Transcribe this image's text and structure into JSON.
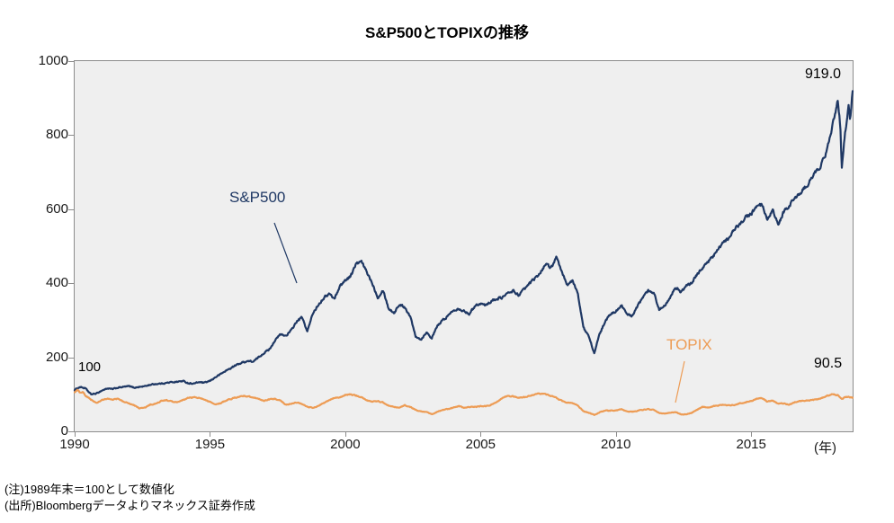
{
  "title": "S&P500とTOPIXの推移",
  "annotations": {
    "start_value": "100",
    "sp500_label": "S&P500",
    "topix_label": "TOPIX",
    "sp500_end": "919.0",
    "topix_end": "90.5",
    "x_unit": "(年)"
  },
  "footnotes": [
    "(注)1989年末＝100として数値化",
    "(出所)Bloombergデータよりマネックス証券作成"
  ],
  "colors": {
    "sp500": "#1f3864",
    "topix": "#ed9c55",
    "plot_bg": "#efefef",
    "axis": "#8c8c8c"
  },
  "chart_data": {
    "type": "line",
    "title": "S&P500とTOPIXの推移",
    "xlabel": "(年)",
    "ylabel": "",
    "x_range": [
      1990,
      2018.75
    ],
    "x_ticks": [
      1990,
      1995,
      2000,
      2005,
      2010,
      2015
    ],
    "ylim": [
      0,
      1000
    ],
    "y_ticks": [
      0,
      200,
      400,
      600,
      800,
      1000
    ],
    "note": "1989年末＝100として数値化",
    "series": [
      {
        "name": "S&P500",
        "color": "#1f3864",
        "end_value": 919.0,
        "points": [
          [
            1990.0,
            112
          ],
          [
            1990.2,
            120
          ],
          [
            1990.4,
            116
          ],
          [
            1990.6,
            100
          ],
          [
            1990.8,
            102
          ],
          [
            1991.0,
            110
          ],
          [
            1991.2,
            116
          ],
          [
            1991.4,
            114
          ],
          [
            1991.6,
            118
          ],
          [
            1991.8,
            120
          ],
          [
            1992.0,
            122
          ],
          [
            1992.2,
            118
          ],
          [
            1992.4,
            120
          ],
          [
            1992.6,
            122
          ],
          [
            1992.8,
            126
          ],
          [
            1993.0,
            128
          ],
          [
            1993.2,
            129
          ],
          [
            1993.4,
            131
          ],
          [
            1993.6,
            133
          ],
          [
            1993.8,
            134
          ],
          [
            1994.0,
            136
          ],
          [
            1994.2,
            130
          ],
          [
            1994.4,
            129
          ],
          [
            1994.6,
            133
          ],
          [
            1994.8,
            131
          ],
          [
            1995.0,
            136
          ],
          [
            1995.2,
            146
          ],
          [
            1995.4,
            155
          ],
          [
            1995.6,
            164
          ],
          [
            1995.8,
            172
          ],
          [
            1996.0,
            180
          ],
          [
            1996.2,
            186
          ],
          [
            1996.4,
            190
          ],
          [
            1996.6,
            188
          ],
          [
            1996.8,
            200
          ],
          [
            1997.0,
            212
          ],
          [
            1997.2,
            222
          ],
          [
            1997.4,
            245
          ],
          [
            1997.6,
            262
          ],
          [
            1997.8,
            258
          ],
          [
            1998.0,
            272
          ],
          [
            1998.2,
            296
          ],
          [
            1998.4,
            308
          ],
          [
            1998.6,
            270
          ],
          [
            1998.8,
            318
          ],
          [
            1999.0,
            342
          ],
          [
            1999.2,
            360
          ],
          [
            1999.4,
            372
          ],
          [
            1999.6,
            358
          ],
          [
            1999.8,
            392
          ],
          [
            2000.0,
            408
          ],
          [
            2000.2,
            420
          ],
          [
            2000.4,
            452
          ],
          [
            2000.6,
            458
          ],
          [
            2000.8,
            430
          ],
          [
            2001.0,
            400
          ],
          [
            2001.2,
            362
          ],
          [
            2001.4,
            382
          ],
          [
            2001.6,
            332
          ],
          [
            2001.8,
            320
          ],
          [
            2002.0,
            342
          ],
          [
            2002.2,
            336
          ],
          [
            2002.4,
            310
          ],
          [
            2002.6,
            258
          ],
          [
            2002.8,
            248
          ],
          [
            2003.0,
            268
          ],
          [
            2003.2,
            252
          ],
          [
            2003.4,
            284
          ],
          [
            2003.6,
            300
          ],
          [
            2003.8,
            312
          ],
          [
            2004.0,
            328
          ],
          [
            2004.2,
            332
          ],
          [
            2004.4,
            324
          ],
          [
            2004.6,
            318
          ],
          [
            2004.8,
            340
          ],
          [
            2005.0,
            346
          ],
          [
            2005.2,
            340
          ],
          [
            2005.4,
            352
          ],
          [
            2005.6,
            358
          ],
          [
            2005.8,
            362
          ],
          [
            2006.0,
            372
          ],
          [
            2006.2,
            380
          ],
          [
            2006.4,
            368
          ],
          [
            2006.6,
            382
          ],
          [
            2006.8,
            398
          ],
          [
            2007.0,
            412
          ],
          [
            2007.2,
            428
          ],
          [
            2007.4,
            452
          ],
          [
            2007.6,
            442
          ],
          [
            2007.8,
            468
          ],
          [
            2008.0,
            430
          ],
          [
            2008.2,
            396
          ],
          [
            2008.4,
            406
          ],
          [
            2008.6,
            372
          ],
          [
            2008.8,
            280
          ],
          [
            2009.0,
            256
          ],
          [
            2009.2,
            212
          ],
          [
            2009.4,
            262
          ],
          [
            2009.6,
            296
          ],
          [
            2009.8,
            316
          ],
          [
            2010.0,
            324
          ],
          [
            2010.2,
            342
          ],
          [
            2010.4,
            316
          ],
          [
            2010.6,
            312
          ],
          [
            2010.8,
            338
          ],
          [
            2011.0,
            362
          ],
          [
            2011.2,
            380
          ],
          [
            2011.4,
            376
          ],
          [
            2011.6,
            328
          ],
          [
            2011.8,
            340
          ],
          [
            2012.0,
            362
          ],
          [
            2012.2,
            390
          ],
          [
            2012.4,
            376
          ],
          [
            2012.6,
            392
          ],
          [
            2012.8,
            400
          ],
          [
            2013.0,
            424
          ],
          [
            2013.2,
            442
          ],
          [
            2013.4,
            458
          ],
          [
            2013.6,
            472
          ],
          [
            2013.8,
            494
          ],
          [
            2014.0,
            512
          ],
          [
            2014.2,
            524
          ],
          [
            2014.4,
            546
          ],
          [
            2014.6,
            562
          ],
          [
            2014.8,
            578
          ],
          [
            2015.0,
            588
          ],
          [
            2015.2,
            606
          ],
          [
            2015.4,
            612
          ],
          [
            2015.6,
            566
          ],
          [
            2015.8,
            598
          ],
          [
            2016.0,
            556
          ],
          [
            2016.2,
            592
          ],
          [
            2016.4,
            608
          ],
          [
            2016.6,
            630
          ],
          [
            2016.8,
            642
          ],
          [
            2017.0,
            658
          ],
          [
            2017.2,
            680
          ],
          [
            2017.4,
            702
          ],
          [
            2017.6,
            722
          ],
          [
            2017.8,
            758
          ],
          [
            2018.0,
            822
          ],
          [
            2018.1,
            862
          ],
          [
            2018.2,
            896
          ],
          [
            2018.3,
            820
          ],
          [
            2018.35,
            716
          ],
          [
            2018.45,
            792
          ],
          [
            2018.55,
            848
          ],
          [
            2018.6,
            884
          ],
          [
            2018.65,
            846
          ],
          [
            2018.7,
            872
          ],
          [
            2018.75,
            919
          ]
        ]
      },
      {
        "name": "TOPIX",
        "color": "#ed9c55",
        "end_value": 90.5,
        "points": [
          [
            1990.0,
            106
          ],
          [
            1990.1,
            112
          ],
          [
            1990.2,
            104
          ],
          [
            1990.3,
            108
          ],
          [
            1990.4,
            96
          ],
          [
            1990.6,
            86
          ],
          [
            1990.8,
            76
          ],
          [
            1991.0,
            84
          ],
          [
            1991.2,
            88
          ],
          [
            1991.4,
            86
          ],
          [
            1991.6,
            88
          ],
          [
            1991.8,
            80
          ],
          [
            1992.0,
            76
          ],
          [
            1992.2,
            70
          ],
          [
            1992.4,
            62
          ],
          [
            1992.6,
            64
          ],
          [
            1992.8,
            72
          ],
          [
            1993.0,
            74
          ],
          [
            1993.2,
            82
          ],
          [
            1993.4,
            84
          ],
          [
            1993.6,
            80
          ],
          [
            1993.8,
            78
          ],
          [
            1994.0,
            84
          ],
          [
            1994.2,
            90
          ],
          [
            1994.4,
            92
          ],
          [
            1994.6,
            90
          ],
          [
            1994.8,
            86
          ],
          [
            1995.0,
            80
          ],
          [
            1995.2,
            72
          ],
          [
            1995.4,
            76
          ],
          [
            1995.6,
            84
          ],
          [
            1995.8,
            88
          ],
          [
            1996.0,
            92
          ],
          [
            1996.2,
            96
          ],
          [
            1996.4,
            94
          ],
          [
            1996.6,
            92
          ],
          [
            1996.8,
            88
          ],
          [
            1997.0,
            82
          ],
          [
            1997.2,
            86
          ],
          [
            1997.4,
            88
          ],
          [
            1997.6,
            84
          ],
          [
            1997.8,
            72
          ],
          [
            1998.0,
            74
          ],
          [
            1998.2,
            78
          ],
          [
            1998.4,
            74
          ],
          [
            1998.6,
            66
          ],
          [
            1998.8,
            64
          ],
          [
            1999.0,
            68
          ],
          [
            1999.2,
            76
          ],
          [
            1999.4,
            84
          ],
          [
            1999.6,
            90
          ],
          [
            1999.8,
            92
          ],
          [
            2000.0,
            98
          ],
          [
            2000.2,
            100
          ],
          [
            2000.4,
            96
          ],
          [
            2000.6,
            92
          ],
          [
            2000.8,
            84
          ],
          [
            2001.0,
            80
          ],
          [
            2001.2,
            82
          ],
          [
            2001.4,
            78
          ],
          [
            2001.6,
            70
          ],
          [
            2001.8,
            66
          ],
          [
            2002.0,
            64
          ],
          [
            2002.2,
            70
          ],
          [
            2002.4,
            66
          ],
          [
            2002.6,
            58
          ],
          [
            2002.8,
            54
          ],
          [
            2003.0,
            52
          ],
          [
            2003.2,
            46
          ],
          [
            2003.4,
            52
          ],
          [
            2003.6,
            58
          ],
          [
            2003.8,
            60
          ],
          [
            2004.0,
            64
          ],
          [
            2004.2,
            68
          ],
          [
            2004.4,
            64
          ],
          [
            2004.6,
            66
          ],
          [
            2004.8,
            66
          ],
          [
            2005.0,
            68
          ],
          [
            2005.2,
            68
          ],
          [
            2005.4,
            72
          ],
          [
            2005.6,
            80
          ],
          [
            2005.8,
            90
          ],
          [
            2006.0,
            96
          ],
          [
            2006.2,
            94
          ],
          [
            2006.4,
            90
          ],
          [
            2006.6,
            92
          ],
          [
            2006.8,
            96
          ],
          [
            2007.0,
            100
          ],
          [
            2007.2,
            102
          ],
          [
            2007.4,
            100
          ],
          [
            2007.6,
            96
          ],
          [
            2007.8,
            90
          ],
          [
            2008.0,
            82
          ],
          [
            2008.2,
            78
          ],
          [
            2008.4,
            76
          ],
          [
            2008.6,
            70
          ],
          [
            2008.8,
            54
          ],
          [
            2009.0,
            50
          ],
          [
            2009.2,
            44
          ],
          [
            2009.4,
            52
          ],
          [
            2009.6,
            56
          ],
          [
            2009.8,
            56
          ],
          [
            2010.0,
            56
          ],
          [
            2010.2,
            60
          ],
          [
            2010.4,
            54
          ],
          [
            2010.6,
            52
          ],
          [
            2010.8,
            56
          ],
          [
            2011.0,
            58
          ],
          [
            2011.2,
            60
          ],
          [
            2011.4,
            58
          ],
          [
            2011.6,
            50
          ],
          [
            2011.8,
            48
          ],
          [
            2012.0,
            50
          ],
          [
            2012.2,
            52
          ],
          [
            2012.4,
            46
          ],
          [
            2012.6,
            46
          ],
          [
            2012.8,
            50
          ],
          [
            2013.0,
            58
          ],
          [
            2013.2,
            66
          ],
          [
            2013.4,
            64
          ],
          [
            2013.6,
            68
          ],
          [
            2013.8,
            70
          ],
          [
            2014.0,
            72
          ],
          [
            2014.2,
            70
          ],
          [
            2014.4,
            72
          ],
          [
            2014.6,
            76
          ],
          [
            2014.8,
            78
          ],
          [
            2015.0,
            82
          ],
          [
            2015.2,
            88
          ],
          [
            2015.4,
            90
          ],
          [
            2015.6,
            80
          ],
          [
            2015.8,
            84
          ],
          [
            2016.0,
            74
          ],
          [
            2016.2,
            76
          ],
          [
            2016.4,
            72
          ],
          [
            2016.6,
            78
          ],
          [
            2016.8,
            82
          ],
          [
            2017.0,
            82
          ],
          [
            2017.2,
            84
          ],
          [
            2017.4,
            86
          ],
          [
            2017.6,
            90
          ],
          [
            2017.8,
            96
          ],
          [
            2018.0,
            100
          ],
          [
            2018.2,
            98
          ],
          [
            2018.35,
            88
          ],
          [
            2018.5,
            92
          ],
          [
            2018.6,
            94
          ],
          [
            2018.75,
            90.5
          ]
        ]
      }
    ]
  }
}
